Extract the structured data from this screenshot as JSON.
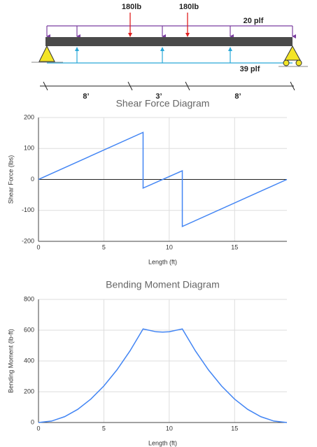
{
  "beam": {
    "point_loads": [
      "180lb",
      "180lb"
    ],
    "distributed_loads": [
      "20 plf",
      "39 plf"
    ],
    "spans": [
      "8’",
      "3’",
      "8’"
    ]
  },
  "chart_data": [
    {
      "type": "line",
      "title": "Shear Force Diagram",
      "x_label": "Length (ft)",
      "y_label": "Shear Force (lbs)",
      "x": [
        0,
        8,
        8,
        11,
        11,
        19
      ],
      "values": [
        0,
        152,
        -28,
        28,
        -152,
        0
      ],
      "color": "#4285f4",
      "xlim": [
        0,
        19
      ],
      "xticks": [
        0,
        5,
        10,
        15
      ],
      "ylim": [
        -200,
        200
      ],
      "yticks": [
        -200,
        -100,
        0,
        100,
        200
      ],
      "grid": true,
      "zero_line": true
    },
    {
      "type": "line",
      "title": "Bending Moment Diagram",
      "x_label": "Length (ft)",
      "y_label": "Bending Moment (lb-ft)",
      "x": [
        0,
        1,
        2,
        3,
        4,
        5,
        6,
        7,
        8,
        9,
        9.5,
        10,
        11,
        12,
        13,
        14,
        15,
        16,
        17,
        18,
        19
      ],
      "values": [
        0,
        9.5,
        38,
        85.5,
        152,
        237.5,
        342,
        465.5,
        608,
        589.5,
        587.4,
        590,
        608,
        465.5,
        342,
        237.5,
        152,
        85.5,
        38,
        9.5,
        0
      ],
      "color": "#4285f4",
      "xlim": [
        0,
        19
      ],
      "xticks": [
        0,
        5,
        10,
        15
      ],
      "ylim": [
        0,
        800
      ],
      "yticks": [
        0,
        200,
        400,
        600,
        800
      ],
      "grid": true,
      "zero_line": false
    }
  ]
}
